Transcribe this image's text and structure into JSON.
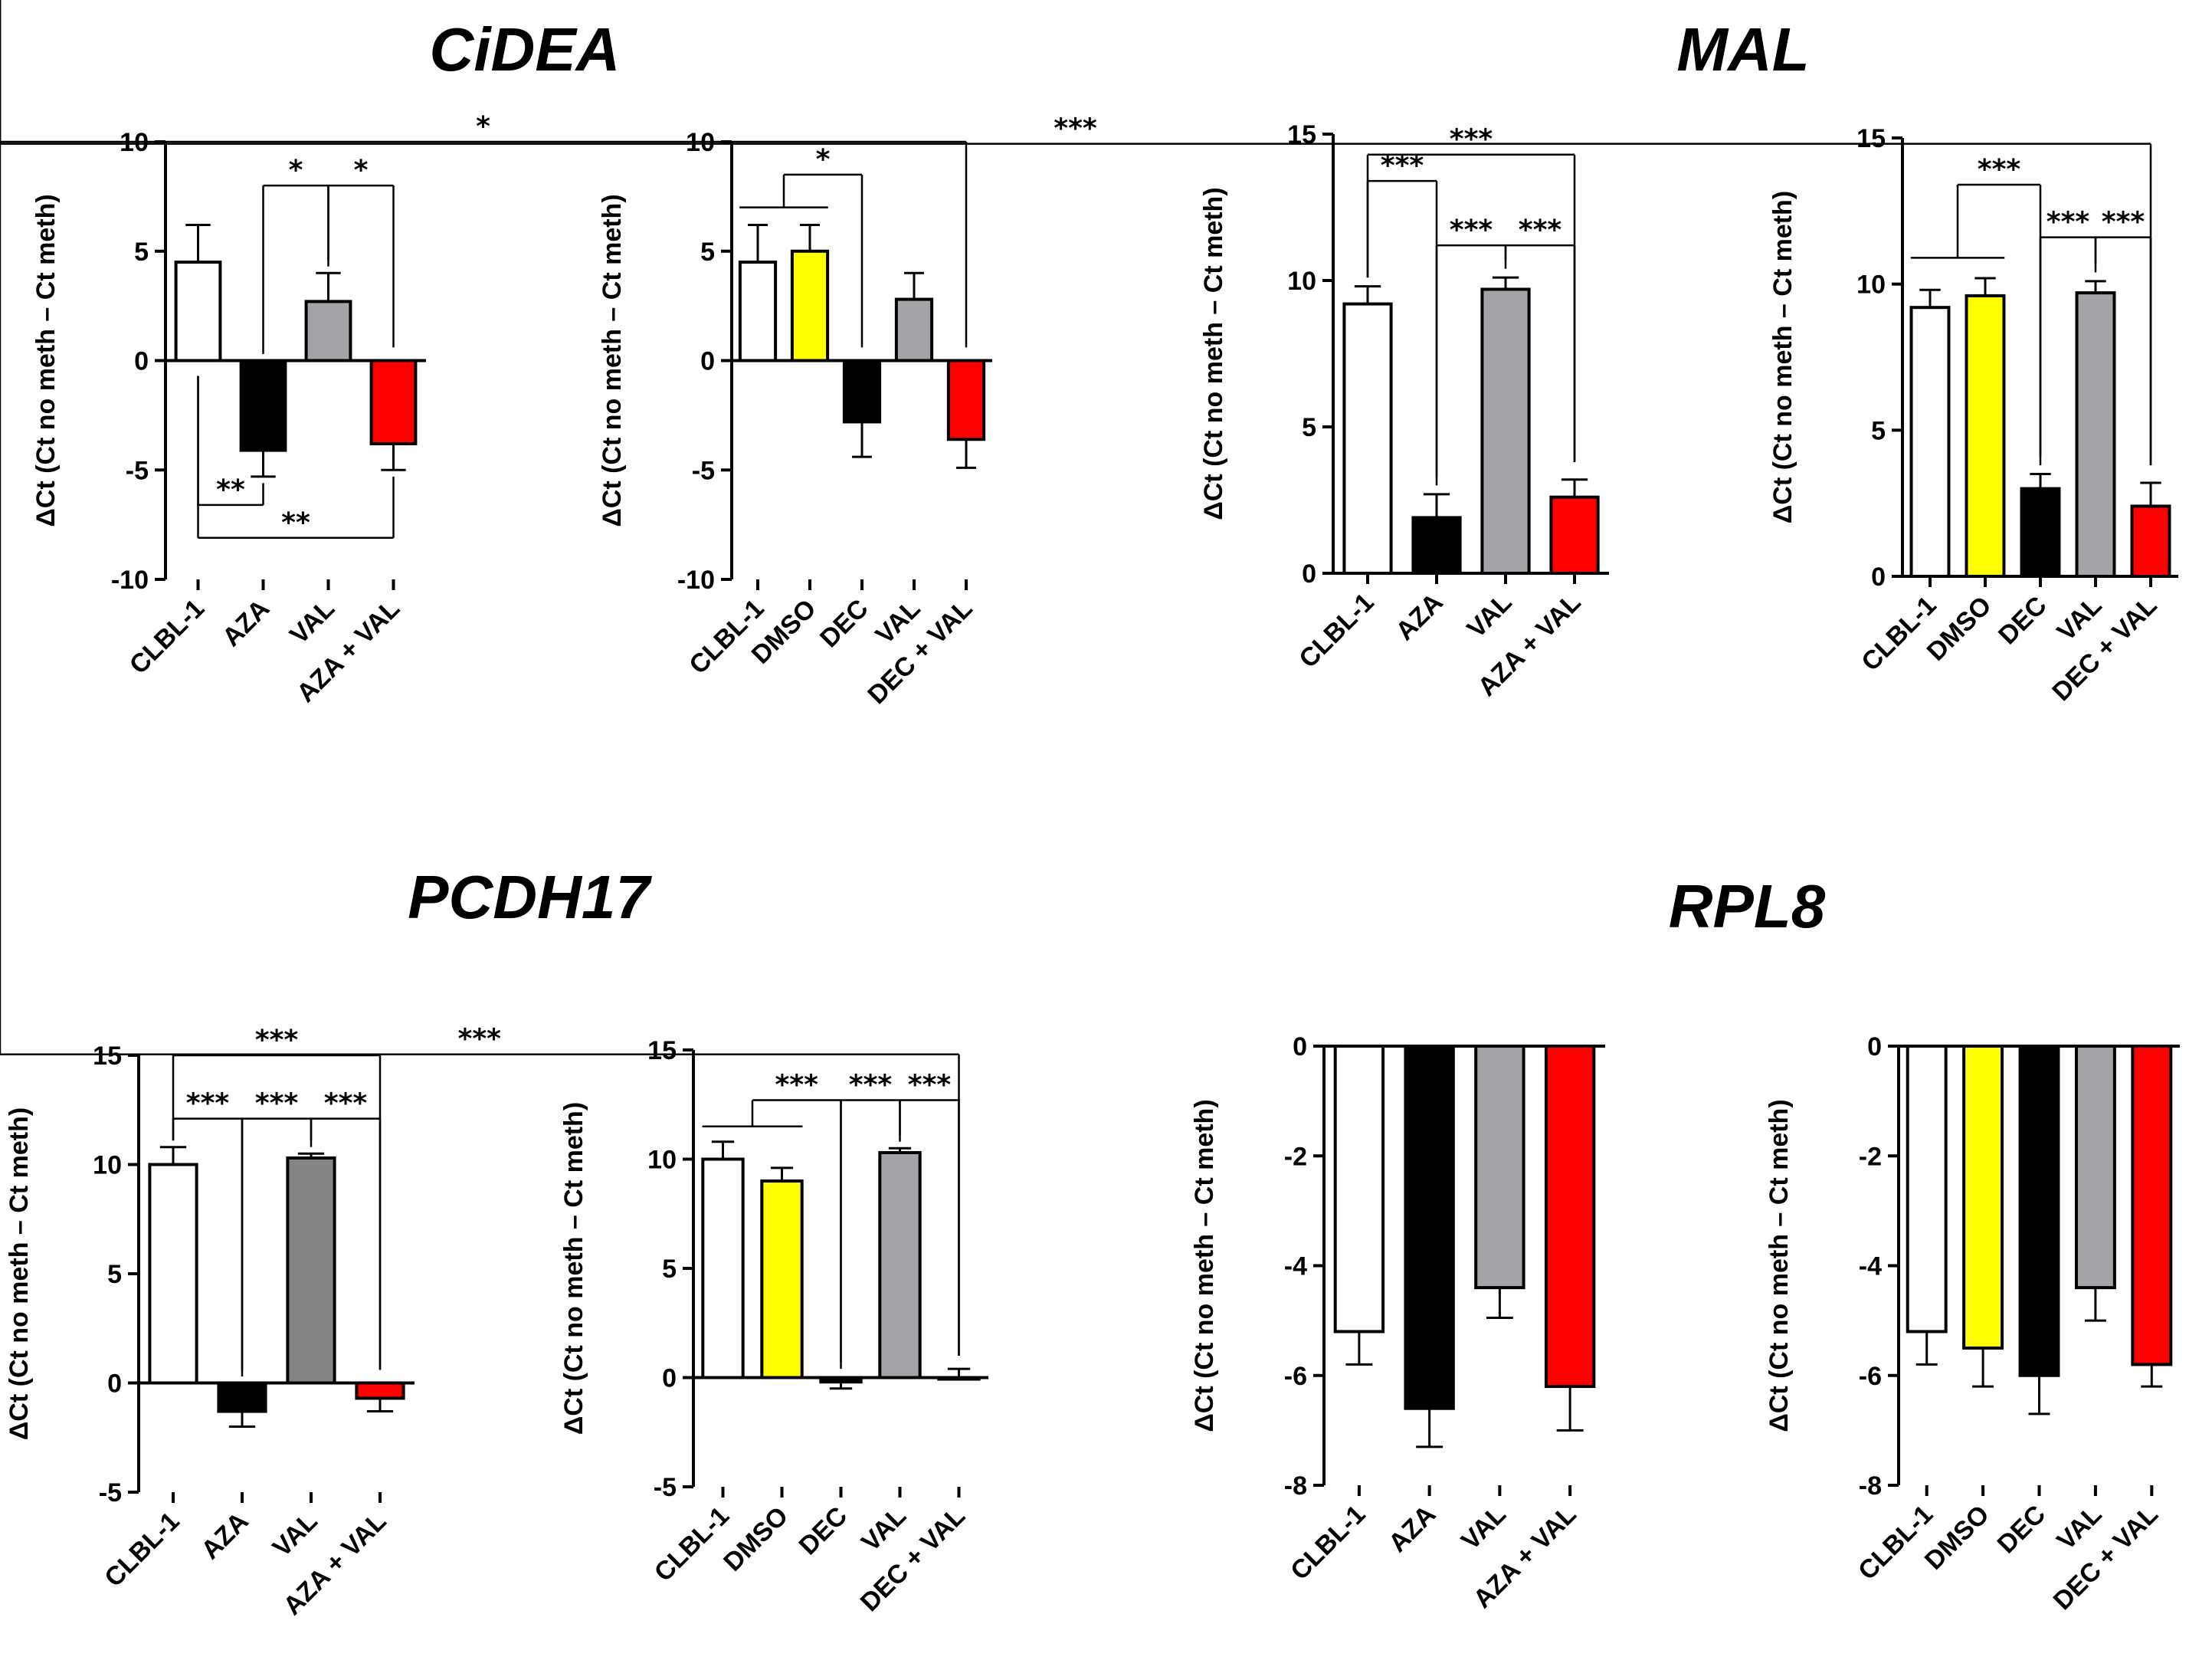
{
  "colors": {
    "white": "#ffffff",
    "black": "#000000",
    "gray": "#a3a3a8",
    "darkgray": "#858585",
    "yellow": "#ffff00",
    "red": "#ff0000"
  },
  "titles": [
    {
      "id": "cidea",
      "text": "CiDEA"
    },
    {
      "id": "mal",
      "text": "MAL"
    },
    {
      "id": "pcdh17",
      "text": "PCDH17"
    },
    {
      "id": "rpl8",
      "text": "RPL8"
    }
  ],
  "chart_data": [
    {
      "id": "cidea-aza",
      "type": "bar",
      "title": "CiDEA",
      "ylabel": "ΔCt (Ct no meth – Ct meth)",
      "ylim": [
        -10,
        10
      ],
      "yticks": [
        "10",
        "5",
        "0",
        "-5",
        "-10"
      ],
      "ytick_values": [
        10,
        5,
        0,
        -5,
        -10
      ],
      "categories": [
        "CLBL-1",
        "AZA",
        "VAL",
        "AZA + VAL"
      ],
      "values": [
        4.5,
        -4.1,
        2.7,
        -3.8
      ],
      "errors": [
        1.7,
        1.2,
        1.3,
        1.2
      ],
      "colors": [
        "white",
        "black",
        "gray",
        "red"
      ],
      "annotations": [
        {
          "from": 1,
          "to": 2,
          "level": 8.0,
          "label": "*"
        },
        {
          "from": 2,
          "to": 3,
          "level": 8.0,
          "label": "*"
        },
        {
          "from": 0,
          "to": 1,
          "level": -6.6,
          "label": "**",
          "down": true
        },
        {
          "from": 0,
          "to": 3,
          "level": -8.1,
          "label": "**",
          "down": true
        }
      ]
    },
    {
      "id": "cidea-dec",
      "type": "bar",
      "title": "CiDEA",
      "ylabel": "ΔCt (Ct no meth – Ct meth)",
      "ylim": [
        -10,
        10
      ],
      "yticks": [
        "10",
        "5",
        "0",
        "-5",
        "-10"
      ],
      "ytick_values": [
        10,
        5,
        0,
        -5,
        -10
      ],
      "categories": [
        "CLBL-1",
        "DMSO",
        "DEC",
        "VAL",
        "DEC + VAL"
      ],
      "values": [
        4.5,
        5.0,
        -2.8,
        2.8,
        -3.6
      ],
      "errors": [
        1.7,
        1.2,
        1.6,
        1.2,
        1.3
      ],
      "colors": [
        "white",
        "yellow",
        "black",
        "gray",
        "red"
      ],
      "annotations": [
        {
          "from": 0.5,
          "to": 2,
          "level": 8.5,
          "label": "*",
          "group": [
            0,
            1
          ],
          "glevel": 7.0
        },
        {
          "from": 0.5,
          "to": 4,
          "level": 10.0,
          "label": "*"
        }
      ]
    },
    {
      "id": "mal-aza",
      "type": "bar",
      "title": "MAL",
      "ylabel": "ΔCt (Ct no meth – Ct meth)",
      "ylim": [
        0,
        15
      ],
      "yticks": [
        "15",
        "10",
        "5",
        "0"
      ],
      "ytick_values": [
        15,
        10,
        5,
        0
      ],
      "categories": [
        "CLBL-1",
        "AZA",
        "VAL",
        "AZA + VAL"
      ],
      "values": [
        9.2,
        1.9,
        9.7,
        2.6
      ],
      "errors": [
        0.6,
        0.8,
        0.4,
        0.6
      ],
      "colors": [
        "white",
        "black",
        "gray",
        "red"
      ],
      "annotations": [
        {
          "from": 0,
          "to": 1,
          "level": 13.4,
          "label": "***"
        },
        {
          "from": 1,
          "to": 2,
          "level": 11.2,
          "label": "***"
        },
        {
          "from": 2,
          "to": 3,
          "level": 11.2,
          "label": "***"
        },
        {
          "from": 0,
          "to": 3,
          "level": 14.3,
          "label": "***"
        }
      ]
    },
    {
      "id": "mal-dec",
      "type": "bar",
      "title": "MAL",
      "ylabel": "ΔCt (Ct no meth – Ct meth)",
      "ylim": [
        0,
        15
      ],
      "yticks": [
        "15",
        "10",
        "5",
        "0"
      ],
      "ytick_values": [
        15,
        10,
        5,
        0
      ],
      "categories": [
        "CLBL-1",
        "DMSO",
        "DEC",
        "VAL",
        "DEC + VAL"
      ],
      "values": [
        9.2,
        9.6,
        3.0,
        9.7,
        2.4
      ],
      "errors": [
        0.6,
        0.6,
        0.5,
        0.4,
        0.8
      ],
      "colors": [
        "white",
        "yellow",
        "black",
        "gray",
        "red"
      ],
      "annotations": [
        {
          "from": 0.5,
          "to": 2,
          "level": 13.4,
          "label": "***",
          "group": [
            0,
            1
          ],
          "glevel": 10.9
        },
        {
          "from": 0.5,
          "to": 4,
          "level": 14.8,
          "label": "***"
        },
        {
          "from": 2,
          "to": 3,
          "level": 11.6,
          "label": "***"
        },
        {
          "from": 3,
          "to": 4,
          "level": 11.6,
          "label": "***"
        }
      ]
    },
    {
      "id": "pcdh17-aza",
      "type": "bar",
      "title": "PCDH17",
      "ylabel": "ΔCt (Ct no meth – Ct meth)",
      "ylim": [
        -5,
        15
      ],
      "yticks": [
        "15",
        "10",
        "5",
        "0",
        "-5"
      ],
      "ytick_values": [
        15,
        10,
        5,
        0,
        -5
      ],
      "categories": [
        "CLBL-1",
        "AZA",
        "VAL",
        "AZA + VAL"
      ],
      "values": [
        10.0,
        -1.3,
        10.3,
        -0.7
      ],
      "errors": [
        0.8,
        0.7,
        0.2,
        0.6
      ],
      "colors": [
        "white",
        "black",
        "darkgray",
        "red"
      ],
      "annotations": [
        {
          "from": 0,
          "to": 1,
          "level": 12.1,
          "label": "***"
        },
        {
          "from": 1,
          "to": 2,
          "level": 12.1,
          "label": "***"
        },
        {
          "from": 2,
          "to": 3,
          "level": 12.1,
          "label": "***"
        },
        {
          "from": 0,
          "to": 3,
          "level": 15.0,
          "label": "***"
        }
      ]
    },
    {
      "id": "pcdh17-dec",
      "type": "bar",
      "title": "PCDH17",
      "ylabel": "ΔCt (Ct no meth – Ct meth)",
      "ylim": [
        -5,
        15
      ],
      "yticks": [
        "15",
        "10",
        "5",
        "0",
        "-5"
      ],
      "ytick_values": [
        15,
        10,
        5,
        0,
        -5
      ],
      "categories": [
        "CLBL-1",
        "DMSO",
        "DEC",
        "VAL",
        "DEC + VAL"
      ],
      "values": [
        10.0,
        9.0,
        -0.2,
        10.3,
        0
      ],
      "errors": [
        0.8,
        0.6,
        0.3,
        0.2,
        0.4
      ],
      "colors": [
        "white",
        "yellow",
        "black",
        "gray",
        "red"
      ],
      "annotations": [
        {
          "from": 0.5,
          "to": 2,
          "level": 12.7,
          "label": "***",
          "group": [
            0,
            1
          ],
          "glevel": 11.5
        },
        {
          "from": 0.5,
          "to": 4,
          "level": 14.8,
          "label": "***"
        },
        {
          "from": 2,
          "to": 3,
          "level": 12.7,
          "label": "***"
        },
        {
          "from": 3,
          "to": 4,
          "level": 12.7,
          "label": "***"
        }
      ]
    },
    {
      "id": "rpl8-aza",
      "type": "bar",
      "title": "RPL8",
      "ylabel": "ΔCt (Ct no meth – Ct meth)",
      "ylim": [
        -8,
        0
      ],
      "yticks": [
        "0",
        "-2",
        "-4",
        "-6",
        "-8"
      ],
      "ytick_values": [
        0,
        -2,
        -4,
        -6,
        -8
      ],
      "categories": [
        "CLBL-1",
        "AZA",
        "VAL",
        "AZA + VAL"
      ],
      "values": [
        -5.2,
        -6.6,
        -4.4,
        -6.2
      ],
      "errors": [
        0.6,
        0.7,
        0.55,
        0.8
      ],
      "colors": [
        "white",
        "black",
        "gray",
        "red"
      ],
      "annotations": []
    },
    {
      "id": "rpl8-dec",
      "type": "bar",
      "title": "RPL8",
      "ylabel": "ΔCt (Ct no meth – Ct meth)",
      "ylim": [
        -8,
        0
      ],
      "yticks": [
        "0",
        "-2",
        "-4",
        "-6",
        "-8"
      ],
      "ytick_values": [
        0,
        -2,
        -4,
        -6,
        -8
      ],
      "categories": [
        "CLBL-1",
        "DMSO",
        "DEC",
        "VAL",
        "DEC + VAL"
      ],
      "values": [
        -5.2,
        -5.5,
        -6.0,
        -4.4,
        -5.8
      ],
      "errors": [
        0.6,
        0.7,
        0.7,
        0.6,
        0.4
      ],
      "colors": [
        "white",
        "yellow",
        "black",
        "gray",
        "red"
      ],
      "annotations": []
    }
  ]
}
